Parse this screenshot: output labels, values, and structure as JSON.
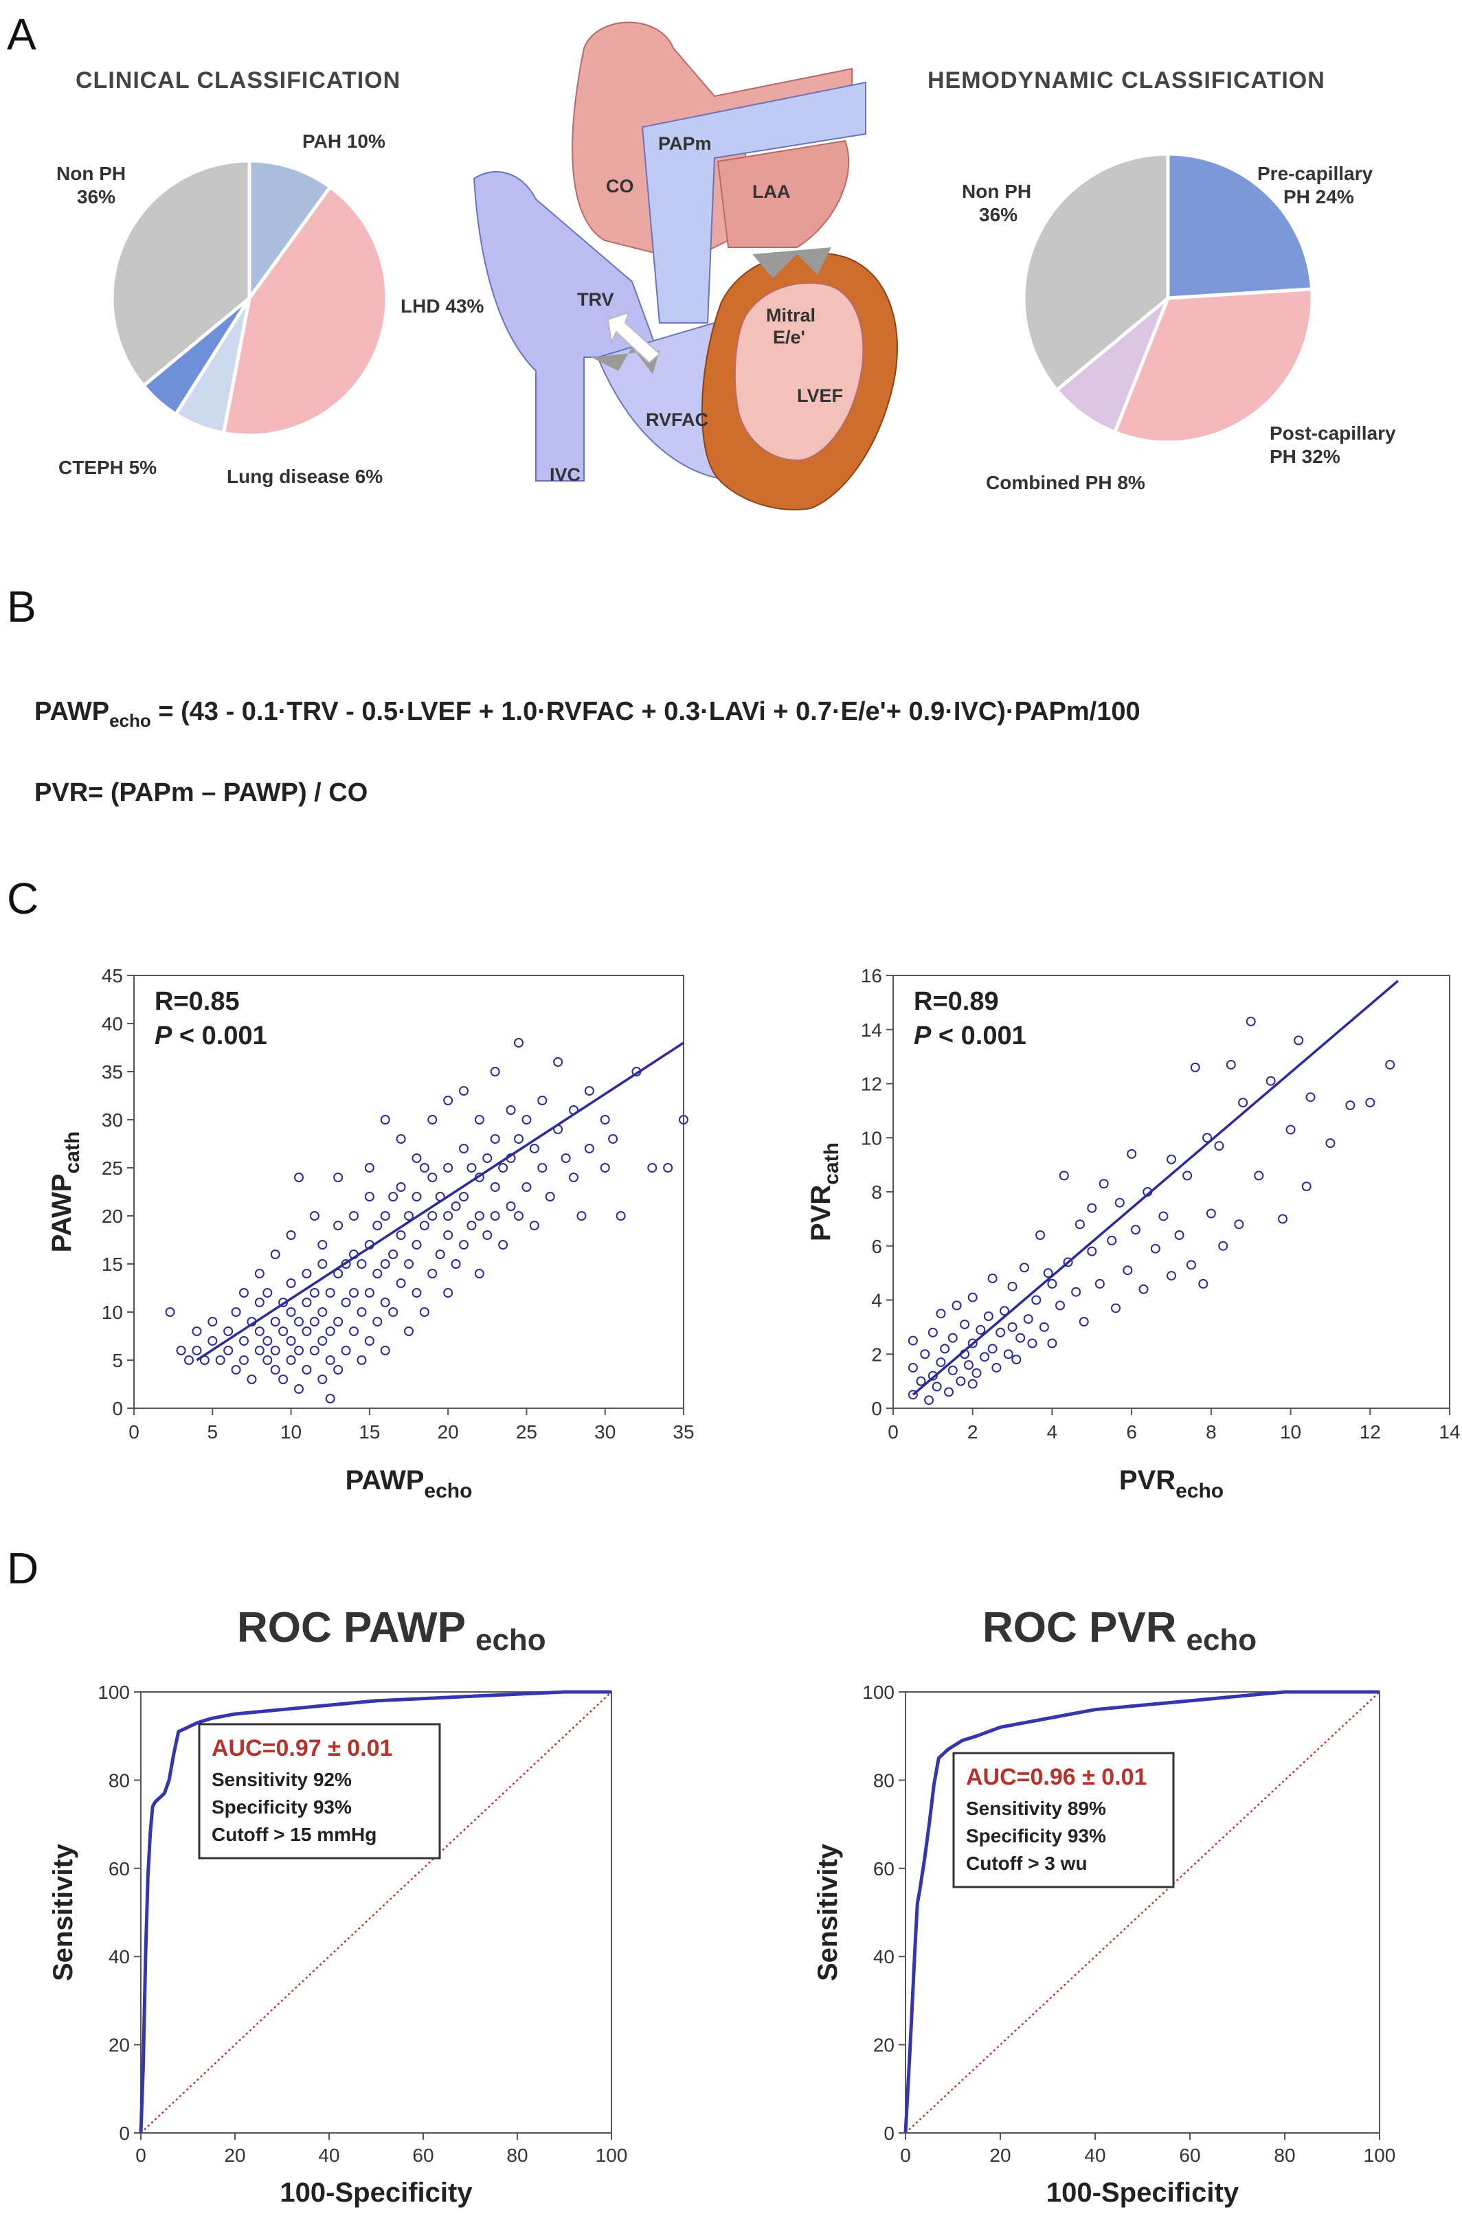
{
  "panels": {
    "a": "A",
    "b": "B",
    "c": "C",
    "d": "D"
  },
  "panel_a": {
    "clinical_title": "CLINICAL CLASSIFICATION",
    "hemodynamic_title": "HEMODYNAMIC CLASSIFICATION",
    "heart_labels": {
      "co": "CO",
      "papm": "PAPm",
      "laa": "LAA",
      "trv": "TRV",
      "mitral": "Mitral",
      "ee": "E/e'",
      "lvef": "LVEF",
      "rvfac": "RVFAC",
      "ivc": "IVC"
    },
    "colors": {
      "heart_left": "#e8a8a0",
      "heart_right": "#b9bdf0",
      "myocardium": "#d2691e"
    }
  },
  "panel_b": {
    "formula1_prefix": "PAWP",
    "formula1_sub": "echo",
    "formula1_rest": " = (43 - 0.1·TRV - 0.5·LVEF + 1.0·RVFAC + 0.3·LAVi + 0.7·E/e'+ 0.9·IVC)·PAPm/100",
    "formula2": "PVR= (PAPm – PAWP) / CO"
  },
  "panel_d": {
    "pawp_title_main": "ROC PAWP",
    "pawp_title_sub": "echo",
    "pvr_title_main": "ROC PVR",
    "pvr_title_sub": "echo"
  },
  "chart_data": [
    {
      "type": "pie",
      "id": "clinical",
      "labels": [
        "PAH 10%",
        "LHD 43%",
        "Lung disease 6%",
        "CTEPH 5%",
        "Non PH\n36%"
      ],
      "values": [
        10,
        43,
        6,
        5,
        36
      ],
      "colors": [
        "#a9bedc",
        "#f4b9bc",
        "#cdd9ee",
        "#6f8fd8",
        "#c6c6c6"
      ]
    },
    {
      "type": "pie",
      "id": "hemodynamic",
      "labels": [
        "Pre-capillary\nPH 24%",
        "Post-capillary\nPH 32%",
        "Combined PH 8%",
        "Non PH\n36%"
      ],
      "values": [
        24,
        32,
        8,
        36
      ],
      "colors": [
        "#7b98d8",
        "#f4b9bc",
        "#dcc5e2",
        "#c6c6c6"
      ]
    },
    {
      "type": "scatter",
      "id": "pawp",
      "xlabel": "PAWP",
      "xlabel_sub": "echo",
      "ylabel": "PAWP",
      "ylabel_sub": "cath",
      "xlim": [
        0,
        35
      ],
      "ylim": [
        0,
        45
      ],
      "xticks": [
        0,
        5,
        10,
        15,
        20,
        25,
        30,
        35
      ],
      "yticks": [
        0,
        5,
        10,
        15,
        20,
        25,
        30,
        35,
        40,
        45
      ],
      "r_text": "R=0.85",
      "p_text": "P",
      "p_rest": " < 0.001",
      "fit": {
        "x": [
          4,
          35
        ],
        "y": [
          5,
          38
        ]
      },
      "color": "#2b2b9a",
      "points": [
        [
          2.3,
          10
        ],
        [
          3,
          6
        ],
        [
          3.5,
          5
        ],
        [
          4,
          6
        ],
        [
          4.5,
          5
        ],
        [
          4,
          8
        ],
        [
          5,
          7
        ],
        [
          5.5,
          5
        ],
        [
          5,
          9
        ],
        [
          6,
          6
        ],
        [
          6,
          8
        ],
        [
          6.5,
          4
        ],
        [
          6.5,
          10
        ],
        [
          7,
          5
        ],
        [
          7,
          7
        ],
        [
          7,
          12
        ],
        [
          7.5,
          3
        ],
        [
          7.5,
          9
        ],
        [
          8,
          6
        ],
        [
          8,
          8
        ],
        [
          8,
          11
        ],
        [
          8,
          14
        ],
        [
          8.5,
          5
        ],
        [
          8.5,
          7
        ],
        [
          8.5,
          12
        ],
        [
          9,
          4
        ],
        [
          9,
          6
        ],
        [
          9,
          9
        ],
        [
          9,
          16
        ],
        [
          9.5,
          3
        ],
        [
          9.5,
          8
        ],
        [
          9.5,
          11
        ],
        [
          10,
          5
        ],
        [
          10,
          7
        ],
        [
          10,
          10
        ],
        [
          10,
          13
        ],
        [
          10,
          18
        ],
        [
          10.5,
          2
        ],
        [
          10.5,
          6
        ],
        [
          10.5,
          9
        ],
        [
          10.5,
          24
        ],
        [
          11,
          4
        ],
        [
          11,
          8
        ],
        [
          11,
          11
        ],
        [
          11,
          14
        ],
        [
          11.5,
          6
        ],
        [
          11.5,
          9
        ],
        [
          11.5,
          12
        ],
        [
          11.5,
          20
        ],
        [
          12,
          3
        ],
        [
          12,
          7
        ],
        [
          12,
          10
        ],
        [
          12,
          15
        ],
        [
          12,
          17
        ],
        [
          12.5,
          1
        ],
        [
          12.5,
          5
        ],
        [
          12.5,
          8
        ],
        [
          12.5,
          12
        ],
        [
          13,
          4
        ],
        [
          13,
          9
        ],
        [
          13,
          14
        ],
        [
          13,
          19
        ],
        [
          13,
          24
        ],
        [
          13.5,
          6
        ],
        [
          13.5,
          11
        ],
        [
          13.5,
          15
        ],
        [
          14,
          8
        ],
        [
          14,
          12
        ],
        [
          14,
          16
        ],
        [
          14,
          20
        ],
        [
          14.5,
          5
        ],
        [
          14.5,
          10
        ],
        [
          14.5,
          15
        ],
        [
          15,
          7
        ],
        [
          15,
          12
        ],
        [
          15,
          17
        ],
        [
          15,
          22
        ],
        [
          15,
          25
        ],
        [
          15.5,
          9
        ],
        [
          15.5,
          14
        ],
        [
          15.5,
          19
        ],
        [
          16,
          6
        ],
        [
          16,
          11
        ],
        [
          16,
          15
        ],
        [
          16,
          20
        ],
        [
          16,
          30
        ],
        [
          16.5,
          10
        ],
        [
          16.5,
          16
        ],
        [
          16.5,
          22
        ],
        [
          17,
          13
        ],
        [
          17,
          18
        ],
        [
          17,
          23
        ],
        [
          17,
          28
        ],
        [
          17.5,
          8
        ],
        [
          17.5,
          15
        ],
        [
          17.5,
          20
        ],
        [
          18,
          12
        ],
        [
          18,
          17
        ],
        [
          18,
          22
        ],
        [
          18,
          26
        ],
        [
          18.5,
          10
        ],
        [
          18.5,
          19
        ],
        [
          18.5,
          25
        ],
        [
          19,
          14
        ],
        [
          19,
          20
        ],
        [
          19,
          24
        ],
        [
          19,
          30
        ],
        [
          19.5,
          16
        ],
        [
          19.5,
          22
        ],
        [
          20,
          12
        ],
        [
          20,
          18
        ],
        [
          20,
          20
        ],
        [
          20,
          25
        ],
        [
          20,
          32
        ],
        [
          20.5,
          15
        ],
        [
          20.5,
          21
        ],
        [
          21,
          17
        ],
        [
          21,
          22
        ],
        [
          21,
          27
        ],
        [
          21,
          33
        ],
        [
          21.5,
          19
        ],
        [
          21.5,
          25
        ],
        [
          22,
          14
        ],
        [
          22,
          20
        ],
        [
          22,
          24
        ],
        [
          22,
          30
        ],
        [
          22.5,
          18
        ],
        [
          22.5,
          26
        ],
        [
          23,
          20
        ],
        [
          23,
          23
        ],
        [
          23,
          28
        ],
        [
          23,
          35
        ],
        [
          23.5,
          17
        ],
        [
          23.5,
          25
        ],
        [
          24,
          21
        ],
        [
          24,
          26
        ],
        [
          24,
          31
        ],
        [
          24.5,
          20
        ],
        [
          24.5,
          28
        ],
        [
          24.5,
          38
        ],
        [
          25,
          23
        ],
        [
          25,
          30
        ],
        [
          25.5,
          19
        ],
        [
          25.5,
          27
        ],
        [
          26,
          25
        ],
        [
          26,
          32
        ],
        [
          26.5,
          22
        ],
        [
          27,
          29
        ],
        [
          27,
          36
        ],
        [
          27.5,
          26
        ],
        [
          28,
          24
        ],
        [
          28,
          31
        ],
        [
          28.5,
          20
        ],
        [
          29,
          27
        ],
        [
          29,
          33
        ],
        [
          30,
          25
        ],
        [
          30,
          30
        ],
        [
          30.5,
          28
        ],
        [
          31,
          20
        ],
        [
          32,
          35
        ],
        [
          33,
          25
        ],
        [
          34,
          25
        ],
        [
          35,
          30
        ]
      ]
    },
    {
      "type": "scatter",
      "id": "pvr",
      "xlabel": "PVR",
      "xlabel_sub": "echo",
      "ylabel": "PVR",
      "ylabel_sub": "cath",
      "xlim": [
        0,
        14
      ],
      "ylim": [
        0,
        16
      ],
      "xticks": [
        0,
        2,
        4,
        6,
        8,
        10,
        12,
        14
      ],
      "yticks": [
        0,
        2,
        4,
        6,
        8,
        10,
        12,
        14,
        16
      ],
      "r_text": "R=0.89",
      "p_text": "P",
      "p_rest": " < 0.001",
      "fit": {
        "x": [
          0.5,
          12.7
        ],
        "y": [
          0.5,
          15.8
        ]
      },
      "color": "#2b2b9a",
      "points": [
        [
          0.5,
          0.5
        ],
        [
          0.5,
          1.5
        ],
        [
          0.5,
          2.5
        ],
        [
          0.7,
          1
        ],
        [
          0.8,
          2
        ],
        [
          0.9,
          0.3
        ],
        [
          1,
          1.2
        ],
        [
          1,
          2.8
        ],
        [
          1.1,
          0.8
        ],
        [
          1.2,
          1.7
        ],
        [
          1.2,
          3.5
        ],
        [
          1.3,
          2.2
        ],
        [
          1.4,
          0.6
        ],
        [
          1.5,
          1.4
        ],
        [
          1.5,
          2.6
        ],
        [
          1.6,
          3.8
        ],
        [
          1.7,
          1
        ],
        [
          1.8,
          2
        ],
        [
          1.8,
          3.1
        ],
        [
          1.9,
          1.6
        ],
        [
          2,
          0.9
        ],
        [
          2,
          2.4
        ],
        [
          2,
          4.1
        ],
        [
          2.1,
          1.3
        ],
        [
          2.2,
          2.9
        ],
        [
          2.3,
          1.9
        ],
        [
          2.4,
          3.4
        ],
        [
          2.5,
          2.2
        ],
        [
          2.5,
          4.8
        ],
        [
          2.6,
          1.5
        ],
        [
          2.7,
          2.8
        ],
        [
          2.8,
          3.6
        ],
        [
          2.9,
          2
        ],
        [
          3,
          3
        ],
        [
          3,
          4.5
        ],
        [
          3.1,
          1.8
        ],
        [
          3.2,
          2.6
        ],
        [
          3.3,
          5.2
        ],
        [
          3.4,
          3.3
        ],
        [
          3.5,
          2.4
        ],
        [
          3.6,
          4
        ],
        [
          3.7,
          6.4
        ],
        [
          3.8,
          3
        ],
        [
          3.9,
          5
        ],
        [
          4,
          2.4
        ],
        [
          4,
          4.6
        ],
        [
          4.2,
          3.8
        ],
        [
          4.3,
          8.6
        ],
        [
          4.4,
          5.4
        ],
        [
          4.6,
          4.3
        ],
        [
          4.7,
          6.8
        ],
        [
          4.8,
          3.2
        ],
        [
          5,
          5.8
        ],
        [
          5,
          7.4
        ],
        [
          5.2,
          4.6
        ],
        [
          5.3,
          8.3
        ],
        [
          5.5,
          6.2
        ],
        [
          5.6,
          3.7
        ],
        [
          5.7,
          7.6
        ],
        [
          5.9,
          5.1
        ],
        [
          6,
          9.4
        ],
        [
          6.1,
          6.6
        ],
        [
          6.3,
          4.4
        ],
        [
          6.4,
          8
        ],
        [
          6.6,
          5.9
        ],
        [
          6.8,
          7.1
        ],
        [
          7,
          9.2
        ],
        [
          7,
          4.9
        ],
        [
          7.2,
          6.4
        ],
        [
          7.4,
          8.6
        ],
        [
          7.5,
          5.3
        ],
        [
          7.6,
          12.6
        ],
        [
          7.8,
          4.6
        ],
        [
          7.9,
          10
        ],
        [
          8,
          7.2
        ],
        [
          8.2,
          9.7
        ],
        [
          8.3,
          6
        ],
        [
          8.5,
          12.7
        ],
        [
          8.7,
          6.8
        ],
        [
          8.8,
          11.3
        ],
        [
          9,
          14.3
        ],
        [
          9.2,
          8.6
        ],
        [
          9.5,
          12.1
        ],
        [
          9.8,
          7
        ],
        [
          10,
          10.3
        ],
        [
          10.2,
          13.6
        ],
        [
          10.4,
          8.2
        ],
        [
          10.5,
          11.5
        ],
        [
          11,
          9.8
        ],
        [
          11.5,
          11.2
        ],
        [
          12,
          11.3
        ],
        [
          12.5,
          12.7
        ]
      ]
    },
    {
      "type": "line",
      "id": "roc_pawp",
      "xlabel": "100-Specificity",
      "ylabel": "Sensitivity",
      "xlim": [
        0,
        100
      ],
      "ylim": [
        0,
        100
      ],
      "xticks": [
        0,
        20,
        40,
        60,
        80,
        100
      ],
      "yticks": [
        0,
        20,
        40,
        60,
        80,
        100
      ],
      "x": [
        0,
        0.5,
        1,
        1.5,
        2,
        2.5,
        3,
        4,
        5,
        6,
        7,
        8,
        10,
        12,
        15,
        20,
        30,
        40,
        50,
        60,
        70,
        80,
        90,
        100
      ],
      "y": [
        0,
        15,
        40,
        58,
        68,
        74,
        75,
        76,
        77,
        80,
        86,
        91,
        92,
        93,
        94,
        95,
        96,
        97,
        98,
        98.5,
        99,
        99.5,
        100,
        100
      ],
      "box": {
        "auc": "AUC=0.97 ± 0.01",
        "sens": "Sensitivity 92%",
        "spec": "Specificity 93%",
        "cutoff": "Cutoff > 15 mmHg"
      },
      "curve_color": "#3535b0",
      "diag_color": "#c0392b"
    },
    {
      "type": "line",
      "id": "roc_pvr",
      "xlabel": "100-Specificity",
      "ylabel": "Sensitivity",
      "xlim": [
        0,
        100
      ],
      "ylim": [
        0,
        100
      ],
      "xticks": [
        0,
        20,
        40,
        60,
        80,
        100
      ],
      "yticks": [
        0,
        20,
        40,
        60,
        80,
        100
      ],
      "x": [
        0,
        1,
        2,
        2.5,
        3,
        4,
        5,
        6,
        7,
        9,
        12,
        15,
        20,
        25,
        30,
        40,
        50,
        60,
        70,
        80,
        90,
        100
      ],
      "y": [
        0,
        20,
        42,
        52,
        55,
        62,
        70,
        79,
        85,
        87,
        89,
        90,
        92,
        93,
        94,
        96,
        97,
        98,
        99,
        100,
        100,
        100
      ],
      "box": {
        "auc": "AUC=0.96 ± 0.01",
        "sens": "Sensitivity 89%",
        "spec": "Specificity 93%",
        "cutoff": "Cutoff > 3 wu"
      },
      "curve_color": "#3535b0",
      "diag_color": "#c0392b"
    }
  ]
}
